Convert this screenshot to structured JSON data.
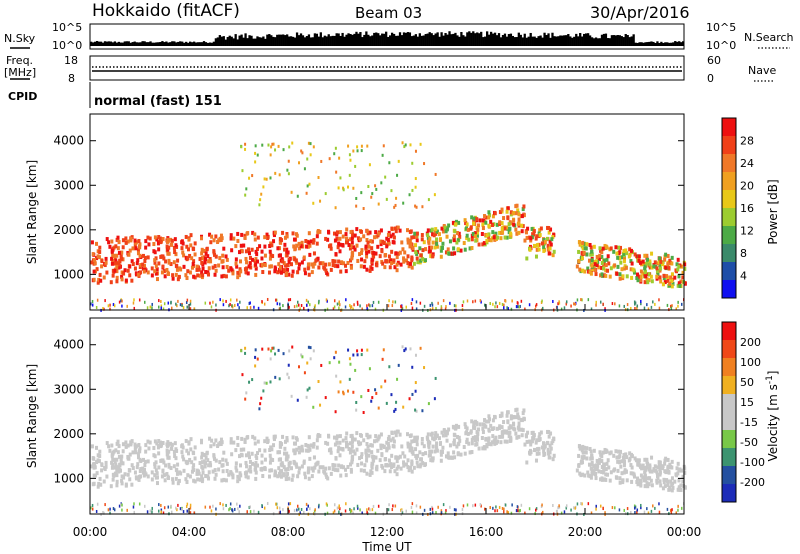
{
  "header": {
    "station": "Hokkaido (fitACF)",
    "beam": "Beam 03",
    "date": "30/Apr/2016"
  },
  "top_panels": {
    "nsky_label": "N.Sky",
    "nsky_ticks": [
      "10^5",
      "10^0"
    ],
    "nsearch_label": "N.Search",
    "nsearch_ticks": [
      "10^5",
      "10^0"
    ],
    "freq_label_1": "Freq.",
    "freq_label_2": "[MHz]",
    "freq_ticks": [
      "18",
      "8"
    ],
    "nave_label": "Nave",
    "nave_ticks": [
      "60",
      "0"
    ],
    "cpid_label": "CPID",
    "cpid_text": "normal (fast) 151"
  },
  "colors": {
    "power": [
      "#1010f0",
      "#1e4ea8",
      "#3a8a6a",
      "#4caa46",
      "#9ccc30",
      "#e8c818",
      "#f0a020",
      "#f07828",
      "#f04018",
      "#ee1010"
    ],
    "velocity": [
      "#1c2cb8",
      "#2450a0",
      "#3c9470",
      "#78c848",
      "#c8c8c8",
      "#c8c8c8",
      "#f0b020",
      "#f08020",
      "#f04818",
      "#ee1010"
    ]
  },
  "chart_data": [
    {
      "type": "heatmap",
      "ylabel": "Slant Range [km]",
      "xlabel": "Time UT",
      "x_ticks": [
        "00:00",
        "04:00",
        "08:00",
        "12:00",
        "16:00",
        "20:00",
        "00:00"
      ],
      "x_range_hours": [
        0,
        24
      ],
      "y_ticks": [
        1000,
        2000,
        3000,
        4000
      ],
      "ylim": [
        200,
        4600
      ],
      "colorbar": {
        "label": "Power [dB]",
        "ticks": [
          28,
          24,
          20,
          16,
          12,
          8,
          4
        ],
        "range": [
          0,
          30
        ]
      }
    },
    {
      "type": "heatmap",
      "ylabel": "Slant Range [km]",
      "xlabel": "Time UT",
      "x_ticks": [
        "00:00",
        "04:00",
        "08:00",
        "12:00",
        "16:00",
        "20:00",
        "00:00"
      ],
      "x_range_hours": [
        0,
        24
      ],
      "y_ticks": [
        1000,
        2000,
        3000,
        4000
      ],
      "ylim": [
        200,
        4600
      ],
      "colorbar": {
        "label": "Velocity [m s^-1]",
        "ticks": [
          200,
          100,
          50,
          15,
          -15,
          -50,
          -100,
          -200
        ]
      }
    }
  ]
}
